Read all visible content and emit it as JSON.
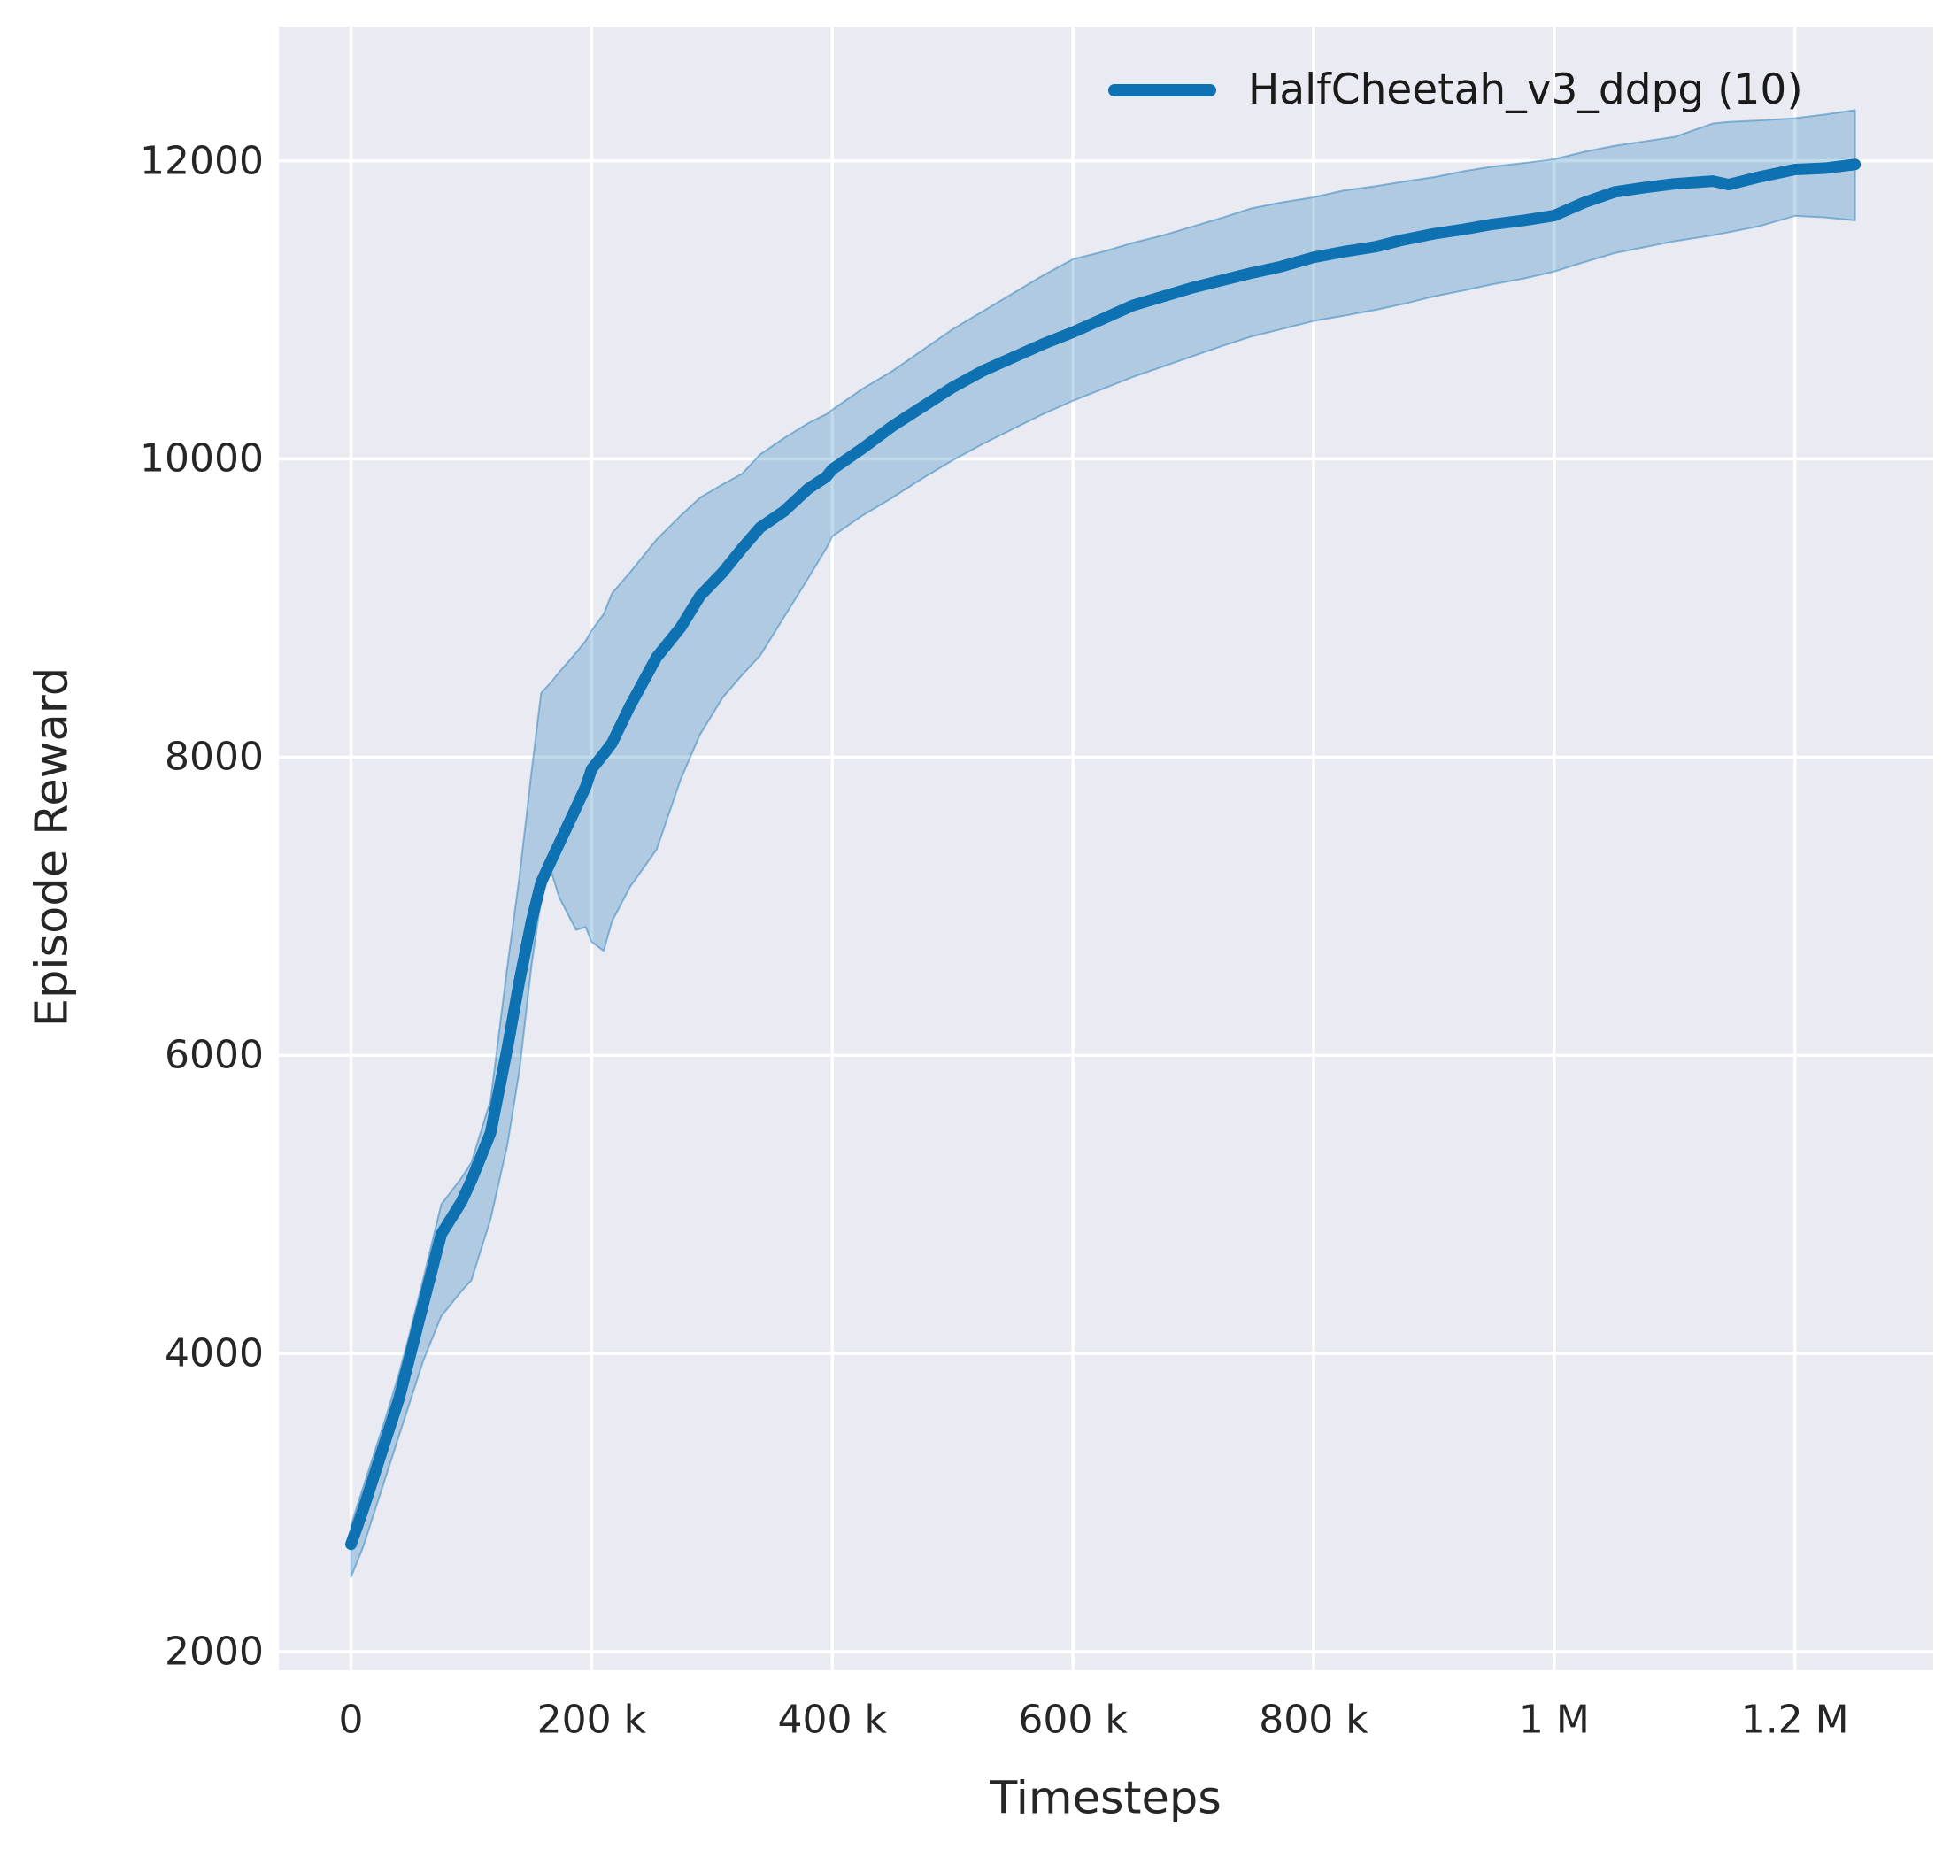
{
  "chart_data": {
    "type": "line",
    "title": "",
    "xlabel": "Timesteps",
    "ylabel": "Episode Reward",
    "grid": true,
    "legend_position": "upper right",
    "legend": [
      {
        "label": "HalfCheetah_v3_ddpg (10)",
        "color": "#0d71b2"
      }
    ],
    "xlim": [
      -60000,
      1315000
    ],
    "ylim": [
      1875,
      12900
    ],
    "x_ticks": [
      {
        "v": 0,
        "label": "0"
      },
      {
        "v": 200000,
        "label": "200 k"
      },
      {
        "v": 400000,
        "label": "400 k"
      },
      {
        "v": 600000,
        "label": "600 k"
      },
      {
        "v": 800000,
        "label": "800 k"
      },
      {
        "v": 1000000,
        "label": "1 M"
      },
      {
        "v": 1200000,
        "label": "1.2 M"
      }
    ],
    "y_ticks": [
      {
        "v": 2000,
        "label": "2000"
      },
      {
        "v": 4000,
        "label": "4000"
      },
      {
        "v": 6000,
        "label": "6000"
      },
      {
        "v": 8000,
        "label": "8000"
      },
      {
        "v": 10000,
        "label": "10000"
      },
      {
        "v": 12000,
        "label": "12000"
      }
    ],
    "colors": {
      "figure_bg": "#ffffff",
      "axes_bg": "#eaeaf2",
      "grid": "#ffffff",
      "line": "#0d71b2",
      "band_fill": "rgba(13,113,178,0.26)",
      "band_edge": "rgba(13,113,178,0.42)",
      "text": "#262626"
    },
    "series": [
      {
        "name": "HalfCheetah_v3_ddpg (10)",
        "color": "#0d71b2",
        "x": [
          0,
          10000,
          20000,
          30000,
          40000,
          48000,
          60000,
          75000,
          92000,
          100000,
          116000,
          130000,
          140000,
          150000,
          158000,
          166000,
          173000,
          187000,
          195000,
          200000,
          210000,
          217000,
          232000,
          254000,
          274000,
          290000,
          309000,
          325000,
          340000,
          360000,
          380000,
          395000,
          400000,
          425000,
          450000,
          475000,
          500000,
          525000,
          550000,
          575000,
          600000,
          625000,
          650000,
          675000,
          700000,
          725000,
          748000,
          773000,
          800000,
          825000,
          852000,
          875000,
          900000,
          925000,
          948000,
          975000,
          1000000,
          1025000,
          1050000,
          1075000,
          1100000,
          1132000,
          1145000,
          1170000,
          1200000,
          1225000,
          1250000
        ],
        "y": [
          2720,
          2950,
          3200,
          3450,
          3700,
          3950,
          4330,
          4800,
          5020,
          5160,
          5480,
          6050,
          6500,
          6900,
          7160,
          7300,
          7420,
          7660,
          7800,
          7920,
          8020,
          8095,
          8345,
          8670,
          8870,
          9080,
          9240,
          9400,
          9540,
          9650,
          9800,
          9880,
          9930,
          10070,
          10220,
          10350,
          10480,
          10590,
          10680,
          10770,
          10850,
          10940,
          11030,
          11090,
          11150,
          11200,
          11246,
          11290,
          11352,
          11390,
          11424,
          11470,
          11510,
          11540,
          11573,
          11600,
          11632,
          11720,
          11790,
          11820,
          11845,
          11863,
          11840,
          11890,
          11941,
          11950,
          11975
        ],
        "band_lower": [
          2500,
          2700,
          2950,
          3200,
          3450,
          3650,
          3950,
          4250,
          4420,
          4490,
          4900,
          5400,
          5900,
          6600,
          7050,
          7240,
          7060,
          6840,
          6860,
          6760,
          6700,
          6900,
          7130,
          7380,
          7850,
          8150,
          8400,
          8550,
          8680,
          8940,
          9200,
          9400,
          9480,
          9620,
          9740,
          9870,
          9990,
          10100,
          10200,
          10300,
          10390,
          10470,
          10550,
          10620,
          10690,
          10760,
          10820,
          10870,
          10925,
          10960,
          11000,
          11040,
          11090,
          11130,
          11170,
          11210,
          11257,
          11320,
          11380,
          11420,
          11460,
          11500,
          11520,
          11560,
          11630,
          11620,
          11600
        ],
        "band_upper": [
          2850,
          3100,
          3350,
          3600,
          3870,
          4110,
          4500,
          5000,
          5180,
          5280,
          5700,
          6600,
          7200,
          7900,
          8430,
          8500,
          8570,
          8700,
          8780,
          8850,
          8960,
          9100,
          9240,
          9460,
          9620,
          9740,
          9830,
          9900,
          10030,
          10140,
          10240,
          10300,
          10330,
          10470,
          10590,
          10730,
          10870,
          10990,
          11110,
          11230,
          11340,
          11390,
          11450,
          11500,
          11560,
          11620,
          11680,
          11720,
          11755,
          11800,
          11830,
          11860,
          11890,
          11930,
          11960,
          11985,
          12010,
          12060,
          12100,
          12130,
          12160,
          12250,
          12260,
          12270,
          12285,
          12310,
          12340
        ]
      }
    ]
  }
}
